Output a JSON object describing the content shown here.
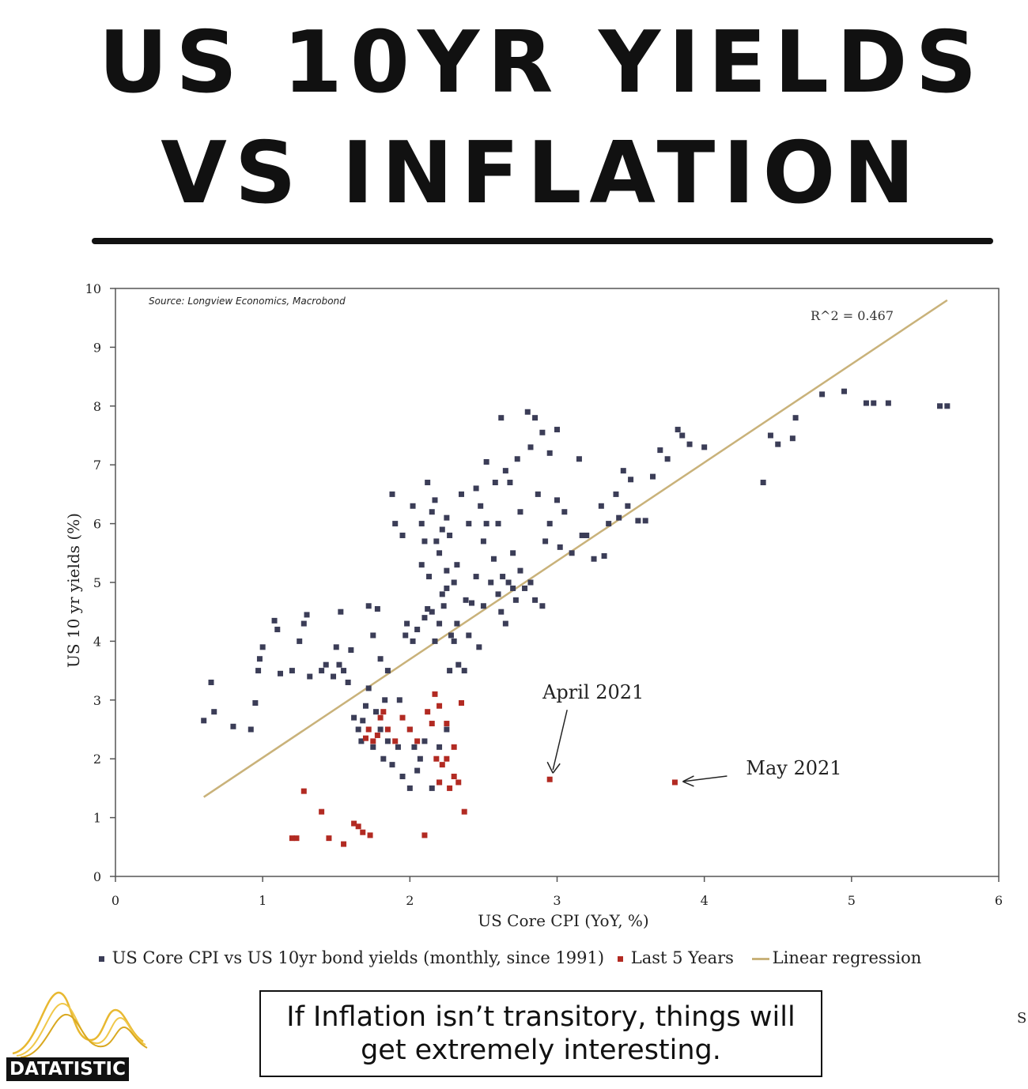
{
  "header": {
    "title_line1": "US 10YR YIELDS",
    "title_line2": "VS INFLATION"
  },
  "footer": {
    "brand": "DATATISTIC",
    "quote": "If Inflation isn’t transitory, things will get extremely interesting.",
    "stray_char": "S"
  },
  "colors": {
    "historic": "#3b3d57",
    "recent": "#b22a22",
    "regression": "#c9b27a",
    "logo": "#e8b830"
  },
  "chart_data": {
    "type": "scatter",
    "title": "",
    "source": "Source: Longview Economics, Macrobond",
    "xlabel": "US Core CPI (YoY, %)",
    "ylabel": "US 10 yr yields (%)",
    "xlim": [
      0,
      6
    ],
    "ylim": [
      0,
      10
    ],
    "xticks": [
      "0",
      "1",
      "2",
      "3",
      "4",
      "5",
      "6"
    ],
    "yticks": [
      "0",
      "1",
      "2",
      "3",
      "4",
      "5",
      "6",
      "7",
      "8",
      "9",
      "10"
    ],
    "r_squared_label": "R^2 = 0.467",
    "legend": [
      {
        "label": "US Core CPI vs US 10yr bond yields (monthly, since 1991)",
        "marker": "square",
        "color": "#3b3d57"
      },
      {
        "label": "Last 5 Years",
        "marker": "square",
        "color": "#b22a22"
      },
      {
        "label": "Linear regression",
        "marker": "line",
        "color": "#c9b27a"
      }
    ],
    "regression": {
      "x": [
        0.6,
        5.65
      ],
      "y": [
        1.35,
        9.8
      ]
    },
    "annotations": [
      {
        "text": "April 2021",
        "x": 2.95,
        "y": 1.65
      },
      {
        "text": "May 2021",
        "x": 3.8,
        "y": 1.6
      }
    ],
    "series": [
      {
        "name": "US Core CPI vs US 10yr bond yields (monthly, since 1991)",
        "points": [
          [
            0.6,
            2.65
          ],
          [
            0.65,
            3.3
          ],
          [
            0.67,
            2.8
          ],
          [
            0.8,
            2.55
          ],
          [
            0.92,
            2.5
          ],
          [
            0.95,
            2.95
          ],
          [
            0.97,
            3.5
          ],
          [
            0.98,
            3.7
          ],
          [
            1.0,
            3.9
          ],
          [
            1.08,
            4.35
          ],
          [
            1.1,
            4.2
          ],
          [
            1.12,
            3.45
          ],
          [
            1.2,
            3.5
          ],
          [
            1.25,
            4.0
          ],
          [
            1.28,
            4.3
          ],
          [
            1.3,
            4.45
          ],
          [
            1.32,
            3.4
          ],
          [
            1.4,
            3.5
          ],
          [
            1.43,
            3.6
          ],
          [
            1.48,
            3.4
          ],
          [
            1.5,
            3.9
          ],
          [
            1.52,
            3.6
          ],
          [
            1.53,
            4.5
          ],
          [
            1.55,
            3.5
          ],
          [
            1.58,
            3.3
          ],
          [
            1.6,
            3.85
          ],
          [
            1.62,
            2.7
          ],
          [
            1.65,
            2.5
          ],
          [
            1.67,
            2.3
          ],
          [
            1.68,
            2.65
          ],
          [
            1.7,
            2.9
          ],
          [
            1.72,
            3.2
          ],
          [
            1.72,
            4.6
          ],
          [
            1.75,
            2.2
          ],
          [
            1.75,
            4.1
          ],
          [
            1.77,
            2.8
          ],
          [
            1.78,
            4.55
          ],
          [
            1.8,
            3.7
          ],
          [
            1.8,
            2.5
          ],
          [
            1.82,
            2.0
          ],
          [
            1.83,
            3.0
          ],
          [
            1.85,
            2.3
          ],
          [
            1.85,
            3.5
          ],
          [
            1.88,
            1.9
          ],
          [
            1.88,
            6.5
          ],
          [
            1.9,
            6.0
          ],
          [
            1.92,
            2.2
          ],
          [
            1.93,
            3.0
          ],
          [
            1.95,
            1.7
          ],
          [
            1.95,
            5.8
          ],
          [
            1.97,
            4.1
          ],
          [
            1.98,
            4.3
          ],
          [
            2.0,
            1.5
          ],
          [
            2.0,
            2.5
          ],
          [
            2.02,
            4.0
          ],
          [
            2.02,
            6.3
          ],
          [
            2.03,
            2.2
          ],
          [
            2.05,
            1.8
          ],
          [
            2.05,
            4.2
          ],
          [
            2.07,
            2.0
          ],
          [
            2.08,
            5.3
          ],
          [
            2.08,
            6.0
          ],
          [
            2.1,
            4.4
          ],
          [
            2.1,
            5.7
          ],
          [
            2.1,
            2.3
          ],
          [
            2.12,
            4.55
          ],
          [
            2.12,
            6.7
          ],
          [
            2.13,
            5.1
          ],
          [
            2.15,
            1.5
          ],
          [
            2.15,
            4.5
          ],
          [
            2.15,
            6.2
          ],
          [
            2.17,
            4.0
          ],
          [
            2.17,
            6.4
          ],
          [
            2.18,
            5.7
          ],
          [
            2.2,
            1.6
          ],
          [
            2.2,
            2.2
          ],
          [
            2.2,
            4.3
          ],
          [
            2.2,
            5.5
          ],
          [
            2.22,
            4.8
          ],
          [
            2.22,
            5.9
          ],
          [
            2.23,
            4.6
          ],
          [
            2.25,
            2.5
          ],
          [
            2.25,
            4.9
          ],
          [
            2.25,
            5.2
          ],
          [
            2.25,
            6.1
          ],
          [
            2.27,
            3.5
          ],
          [
            2.27,
            5.8
          ],
          [
            2.28,
            4.1
          ],
          [
            2.3,
            5.0
          ],
          [
            2.3,
            4.0
          ],
          [
            2.32,
            4.3
          ],
          [
            2.32,
            5.3
          ],
          [
            2.33,
            3.6
          ],
          [
            2.35,
            6.5
          ],
          [
            2.37,
            3.5
          ],
          [
            2.38,
            4.7
          ],
          [
            2.4,
            4.1
          ],
          [
            2.4,
            6.0
          ],
          [
            2.42,
            4.65
          ],
          [
            2.45,
            6.6
          ],
          [
            2.45,
            5.1
          ],
          [
            2.47,
            3.9
          ],
          [
            2.48,
            6.3
          ],
          [
            2.5,
            4.6
          ],
          [
            2.5,
            5.7
          ],
          [
            2.52,
            6.0
          ],
          [
            2.52,
            7.05
          ],
          [
            2.55,
            5.0
          ],
          [
            2.57,
            5.4
          ],
          [
            2.58,
            6.7
          ],
          [
            2.6,
            4.8
          ],
          [
            2.6,
            6.0
          ],
          [
            2.62,
            4.5
          ],
          [
            2.62,
            7.8
          ],
          [
            2.63,
            5.1
          ],
          [
            2.65,
            4.3
          ],
          [
            2.65,
            6.9
          ],
          [
            2.67,
            5.0
          ],
          [
            2.68,
            6.7
          ],
          [
            2.7,
            4.9
          ],
          [
            2.7,
            5.5
          ],
          [
            2.72,
            4.7
          ],
          [
            2.73,
            7.1
          ],
          [
            2.75,
            5.2
          ],
          [
            2.75,
            6.2
          ],
          [
            2.78,
            4.9
          ],
          [
            2.8,
            7.9
          ],
          [
            2.82,
            5.0
          ],
          [
            2.82,
            7.3
          ],
          [
            2.85,
            4.7
          ],
          [
            2.85,
            7.8
          ],
          [
            2.87,
            6.5
          ],
          [
            2.9,
            4.6
          ],
          [
            2.9,
            7.55
          ],
          [
            2.92,
            5.7
          ],
          [
            2.95,
            7.2
          ],
          [
            2.95,
            6.0
          ],
          [
            3.0,
            6.4
          ],
          [
            3.0,
            7.6
          ],
          [
            3.02,
            5.6
          ],
          [
            3.05,
            6.2
          ],
          [
            3.1,
            5.5
          ],
          [
            3.15,
            7.1
          ],
          [
            3.17,
            5.8
          ],
          [
            3.2,
            5.8
          ],
          [
            3.25,
            5.4
          ],
          [
            3.3,
            6.3
          ],
          [
            3.32,
            5.45
          ],
          [
            3.35,
            6.0
          ],
          [
            3.4,
            6.5
          ],
          [
            3.42,
            6.1
          ],
          [
            3.45,
            6.9
          ],
          [
            3.48,
            6.3
          ],
          [
            3.5,
            6.75
          ],
          [
            3.55,
            6.05
          ],
          [
            3.6,
            6.05
          ],
          [
            3.65,
            6.8
          ],
          [
            3.7,
            7.25
          ],
          [
            3.75,
            7.1
          ],
          [
            3.82,
            7.6
          ],
          [
            3.85,
            7.5
          ],
          [
            3.9,
            7.35
          ],
          [
            4.0,
            7.3
          ],
          [
            4.4,
            6.7
          ],
          [
            4.45,
            7.5
          ],
          [
            4.5,
            7.35
          ],
          [
            4.6,
            7.45
          ],
          [
            4.62,
            7.8
          ],
          [
            4.8,
            8.2
          ],
          [
            4.95,
            8.25
          ],
          [
            5.1,
            8.05
          ],
          [
            5.15,
            8.05
          ],
          [
            5.25,
            8.05
          ],
          [
            5.6,
            8.0
          ],
          [
            5.65,
            8.0
          ]
        ]
      },
      {
        "name": "Last 5 Years",
        "points": [
          [
            1.2,
            0.65
          ],
          [
            1.23,
            0.65
          ],
          [
            1.28,
            1.45
          ],
          [
            1.4,
            1.1
          ],
          [
            1.45,
            0.65
          ],
          [
            1.55,
            0.55
          ],
          [
            1.62,
            0.9
          ],
          [
            1.65,
            0.85
          ],
          [
            1.68,
            0.75
          ],
          [
            1.7,
            2.35
          ],
          [
            1.72,
            2.5
          ],
          [
            1.73,
            0.7
          ],
          [
            1.75,
            2.3
          ],
          [
            1.78,
            2.4
          ],
          [
            1.8,
            2.7
          ],
          [
            1.82,
            2.8
          ],
          [
            1.85,
            2.5
          ],
          [
            1.9,
            2.3
          ],
          [
            1.95,
            2.7
          ],
          [
            2.0,
            2.5
          ],
          [
            2.05,
            2.3
          ],
          [
            2.1,
            0.7
          ],
          [
            2.12,
            2.8
          ],
          [
            2.15,
            2.6
          ],
          [
            2.17,
            3.1
          ],
          [
            2.18,
            2.0
          ],
          [
            2.2,
            2.9
          ],
          [
            2.2,
            1.6
          ],
          [
            2.22,
            1.9
          ],
          [
            2.25,
            2.6
          ],
          [
            2.25,
            2.0
          ],
          [
            2.27,
            1.5
          ],
          [
            2.3,
            2.2
          ],
          [
            2.3,
            1.7
          ],
          [
            2.33,
            1.6
          ],
          [
            2.35,
            2.95
          ],
          [
            2.37,
            1.1
          ],
          [
            2.95,
            1.65
          ],
          [
            3.8,
            1.6
          ]
        ]
      }
    ]
  }
}
